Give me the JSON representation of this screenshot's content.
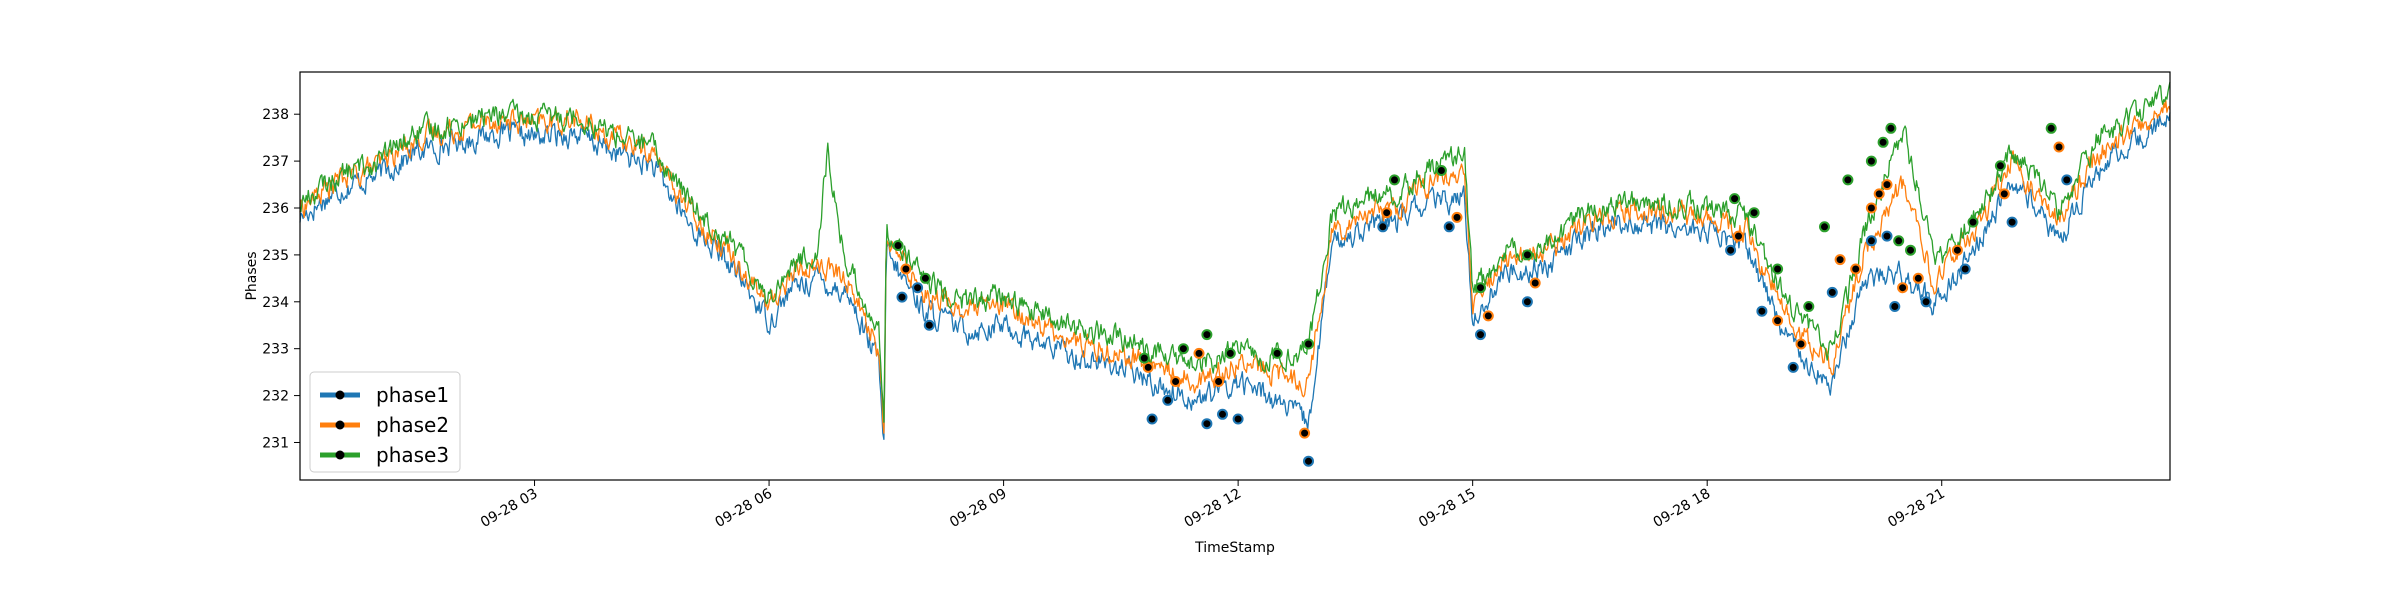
{
  "chart_data": {
    "type": "line",
    "title": "",
    "xlabel": "TimeStamp",
    "ylabel": "Phases",
    "xlim": [
      "09-28 00:00",
      "09-28 23:55"
    ],
    "ylim": [
      230.2,
      238.9
    ],
    "grid": false,
    "legend": "lower-left",
    "x_ticks": [
      {
        "label": "09-28 03",
        "hour": 3
      },
      {
        "label": "09-28 06",
        "hour": 6
      },
      {
        "label": "09-28 09",
        "hour": 9
      },
      {
        "label": "09-28 12",
        "hour": 12
      },
      {
        "label": "09-28 15",
        "hour": 15
      },
      {
        "label": "09-28 18",
        "hour": 18
      },
      {
        "label": "09-28 21",
        "hour": 21
      }
    ],
    "y_ticks": [
      231,
      232,
      233,
      234,
      235,
      236,
      237,
      238
    ],
    "marker_color": "#000000",
    "series": [
      {
        "name": "phase1",
        "color": "#1f77b4",
        "hours": [
          0.0,
          0.5,
          1.0,
          1.5,
          2.0,
          2.5,
          3.0,
          3.5,
          4.0,
          4.5,
          5.0,
          5.5,
          6.0,
          6.3,
          6.6,
          7.0,
          7.4,
          7.47,
          7.5,
          8.0,
          8.5,
          9.0,
          9.5,
          10.0,
          10.5,
          11.0,
          11.5,
          12.0,
          12.4,
          12.9,
          13.2,
          13.6,
          14.0,
          14.4,
          14.9,
          15.0,
          15.4,
          16.0,
          16.5,
          17.0,
          17.5,
          18.0,
          18.5,
          19.0,
          19.6,
          20.0,
          20.5,
          20.9,
          21.0,
          21.5,
          21.9,
          22.0,
          22.5,
          23.0,
          23.9
        ],
        "values": [
          235.8,
          236.4,
          236.7,
          237.2,
          237.4,
          237.6,
          237.5,
          237.6,
          237.2,
          236.9,
          235.6,
          234.8,
          233.6,
          234.3,
          234.5,
          234.2,
          232.7,
          230.9,
          235.0,
          233.8,
          233.4,
          233.5,
          233.1,
          232.8,
          232.6,
          232.2,
          231.9,
          232.3,
          232.0,
          231.4,
          235.2,
          235.6,
          235.7,
          236.1,
          236.2,
          233.6,
          234.6,
          234.8,
          235.5,
          235.7,
          235.6,
          235.5,
          235.2,
          233.3,
          232.2,
          234.5,
          234.6,
          233.9,
          234.2,
          235.3,
          236.6,
          236.4,
          235.3,
          236.8,
          237.9
        ]
      },
      {
        "name": "phase2",
        "color": "#ff7f0e",
        "hours": [
          0.0,
          0.5,
          1.0,
          1.5,
          2.0,
          2.5,
          3.0,
          3.5,
          4.0,
          4.5,
          5.0,
          5.5,
          6.0,
          6.3,
          6.6,
          7.0,
          7.4,
          7.47,
          7.5,
          8.0,
          8.5,
          9.0,
          9.5,
          10.0,
          10.5,
          11.0,
          11.5,
          12.0,
          12.4,
          12.9,
          13.2,
          13.6,
          14.0,
          14.4,
          14.9,
          15.0,
          15.4,
          16.0,
          16.5,
          17.0,
          17.5,
          18.0,
          18.5,
          19.0,
          19.6,
          20.0,
          20.5,
          20.9,
          21.0,
          21.5,
          21.9,
          22.0,
          22.5,
          23.0,
          23.9
        ],
        "values": [
          236.0,
          236.6,
          236.9,
          237.5,
          237.7,
          237.9,
          237.8,
          237.9,
          237.5,
          237.2,
          235.9,
          235.1,
          233.9,
          234.6,
          234.8,
          234.5,
          233.0,
          231.1,
          235.3,
          234.2,
          233.8,
          233.9,
          233.5,
          233.1,
          232.9,
          232.6,
          232.3,
          232.7,
          232.5,
          232.3,
          235.5,
          235.9,
          236.0,
          236.5,
          236.7,
          233.9,
          234.9,
          235.1,
          235.8,
          236.0,
          235.9,
          235.8,
          235.5,
          233.7,
          232.6,
          235.0,
          236.5,
          234.4,
          234.6,
          235.7,
          237.0,
          236.8,
          235.7,
          237.2,
          238.1
        ]
      },
      {
        "name": "phase3",
        "color": "#2ca02c",
        "hours": [
          0.0,
          0.5,
          1.0,
          1.5,
          2.0,
          2.5,
          3.0,
          3.5,
          4.0,
          4.5,
          5.0,
          5.5,
          6.0,
          6.3,
          6.6,
          6.75,
          6.9,
          7.0,
          7.4,
          7.47,
          7.5,
          8.0,
          8.5,
          9.0,
          9.5,
          10.0,
          10.5,
          11.0,
          11.5,
          12.0,
          12.4,
          12.9,
          13.2,
          13.6,
          14.0,
          14.4,
          14.9,
          15.0,
          15.4,
          16.0,
          16.5,
          17.0,
          17.5,
          18.0,
          18.5,
          19.0,
          19.6,
          20.0,
          20.5,
          20.9,
          21.0,
          21.5,
          21.9,
          22.0,
          22.5,
          23.0,
          23.9
        ],
        "values": [
          236.1,
          236.7,
          237.0,
          237.6,
          237.8,
          238.0,
          237.9,
          238.0,
          237.6,
          237.3,
          236.1,
          235.3,
          234.1,
          234.8,
          235.0,
          237.2,
          235.5,
          234.8,
          233.4,
          231.3,
          235.6,
          234.4,
          234.0,
          234.1,
          233.7,
          233.4,
          233.2,
          232.9,
          232.6,
          233.0,
          232.8,
          233.0,
          235.8,
          236.2,
          236.3,
          236.8,
          237.1,
          234.2,
          235.1,
          235.3,
          236.0,
          236.2,
          236.1,
          236.0,
          235.8,
          234.1,
          232.9,
          235.4,
          237.7,
          235.0,
          234.9,
          236.0,
          237.2,
          237.0,
          236.0,
          237.5,
          238.4
        ]
      }
    ],
    "highlight_markers": [
      {
        "series": "phase1",
        "points": [
          [
            7.7,
            234.1
          ],
          [
            7.9,
            234.3
          ],
          [
            8.05,
            233.5
          ],
          [
            10.9,
            231.5
          ],
          [
            11.1,
            231.9
          ],
          [
            11.6,
            231.4
          ],
          [
            11.8,
            231.6
          ],
          [
            12.0,
            231.5
          ],
          [
            12.9,
            230.6
          ],
          [
            13.85,
            235.6
          ],
          [
            14.7,
            235.6
          ],
          [
            15.1,
            233.3
          ],
          [
            15.7,
            234.0
          ],
          [
            18.3,
            235.1
          ],
          [
            18.7,
            233.8
          ],
          [
            19.1,
            232.6
          ],
          [
            19.6,
            234.2
          ],
          [
            20.1,
            235.3
          ],
          [
            20.3,
            235.4
          ],
          [
            20.4,
            233.9
          ],
          [
            20.8,
            234.0
          ],
          [
            21.3,
            234.7
          ],
          [
            21.9,
            235.7
          ],
          [
            22.6,
            236.6
          ]
        ]
      },
      {
        "series": "phase2",
        "points": [
          [
            7.75,
            234.7
          ],
          [
            10.85,
            232.6
          ],
          [
            11.2,
            232.3
          ],
          [
            11.5,
            232.9
          ],
          [
            11.75,
            232.3
          ],
          [
            12.85,
            231.2
          ],
          [
            13.9,
            235.9
          ],
          [
            14.8,
            235.8
          ],
          [
            15.2,
            233.7
          ],
          [
            15.8,
            234.4
          ],
          [
            18.4,
            235.4
          ],
          [
            18.9,
            233.6
          ],
          [
            19.2,
            233.1
          ],
          [
            19.7,
            234.9
          ],
          [
            19.9,
            234.7
          ],
          [
            20.1,
            236.0
          ],
          [
            20.2,
            236.3
          ],
          [
            20.3,
            236.5
          ],
          [
            20.5,
            234.3
          ],
          [
            20.7,
            234.5
          ],
          [
            21.2,
            235.1
          ],
          [
            21.8,
            236.3
          ],
          [
            22.5,
            237.3
          ]
        ]
      },
      {
        "series": "phase3",
        "points": [
          [
            7.65,
            235.2
          ],
          [
            8.0,
            234.5
          ],
          [
            10.8,
            232.8
          ],
          [
            11.3,
            233.0
          ],
          [
            11.6,
            233.3
          ],
          [
            11.9,
            232.9
          ],
          [
            12.5,
            232.9
          ],
          [
            12.9,
            233.1
          ],
          [
            14.0,
            236.6
          ],
          [
            14.6,
            236.8
          ],
          [
            15.1,
            234.3
          ],
          [
            15.7,
            235.0
          ],
          [
            18.35,
            236.2
          ],
          [
            18.6,
            235.9
          ],
          [
            18.9,
            234.7
          ],
          [
            19.3,
            233.9
          ],
          [
            19.5,
            235.6
          ],
          [
            19.8,
            236.6
          ],
          [
            20.1,
            237.0
          ],
          [
            20.25,
            237.4
          ],
          [
            20.35,
            237.7
          ],
          [
            20.45,
            235.3
          ],
          [
            20.6,
            235.1
          ],
          [
            21.4,
            235.7
          ],
          [
            21.75,
            236.9
          ],
          [
            22.4,
            237.7
          ]
        ]
      }
    ]
  }
}
